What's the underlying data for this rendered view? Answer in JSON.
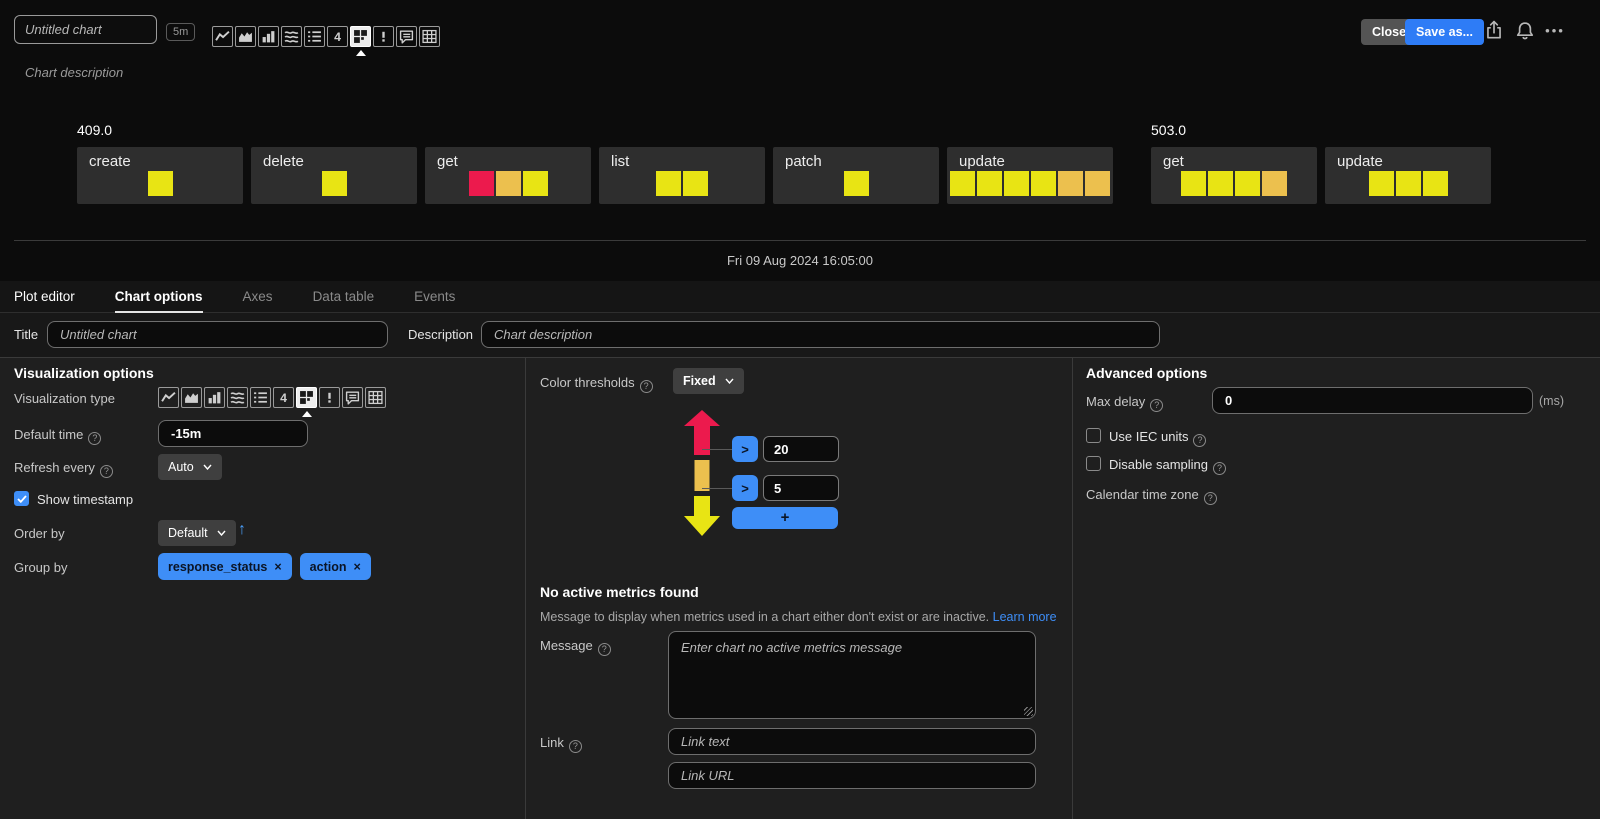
{
  "header": {
    "title_placeholder": "Untitled chart",
    "time_badge": "5m",
    "description_placeholder": "Chart description",
    "close_label": "Close",
    "save_as_label": "Save as...",
    "action_icons": [
      "share-icon",
      "bell-icon",
      "ellipsis-icon"
    ]
  },
  "viz_types": {
    "names": [
      "line-chart",
      "area-chart",
      "column-chart",
      "stream-chart",
      "list",
      "single-value",
      "heatmap",
      "event-feed",
      "text-note",
      "table"
    ],
    "selected": "heatmap",
    "single_value_glyph": "4"
  },
  "heatmap": {
    "timestamp": "Fri 09 Aug 2024 16:05:00",
    "colors": {
      "yellow": "#e8e414",
      "orange": "#ecc04e",
      "red": "#ec1a4d"
    },
    "groups": [
      {
        "label": "409.0",
        "tiles": [
          {
            "name": "create",
            "cells": [
              "yellow"
            ]
          },
          {
            "name": "delete",
            "cells": [
              "yellow"
            ]
          },
          {
            "name": "get",
            "cells": [
              "red",
              "orange",
              "yellow"
            ]
          },
          {
            "name": "list",
            "cells": [
              "yellow",
              "yellow"
            ]
          },
          {
            "name": "patch",
            "cells": [
              "yellow"
            ]
          },
          {
            "name": "update",
            "cells": [
              "yellow",
              "yellow",
              "yellow",
              "yellow",
              "orange",
              "orange"
            ]
          }
        ]
      },
      {
        "label": "503.0",
        "tiles": [
          {
            "name": "get",
            "cells": [
              "yellow",
              "yellow",
              "yellow",
              "orange"
            ]
          },
          {
            "name": "update",
            "cells": [
              "yellow",
              "yellow",
              "yellow"
            ]
          }
        ]
      }
    ]
  },
  "tabs": [
    {
      "label": "Plot editor",
      "state": "white"
    },
    {
      "label": "Chart options",
      "state": "active"
    },
    {
      "label": "Axes",
      "state": "muted"
    },
    {
      "label": "Data table",
      "state": "muted"
    },
    {
      "label": "Events",
      "state": "muted"
    }
  ],
  "title_row": {
    "title_label": "Title",
    "title_placeholder": "Untitled chart",
    "description_label": "Description",
    "description_placeholder": "Chart description"
  },
  "viz_options": {
    "heading": "Visualization options",
    "viz_type_label": "Visualization type",
    "default_time_label": "Default time",
    "default_time_value": "-15m",
    "refresh_label": "Refresh every",
    "refresh_value": "Auto",
    "show_timestamp_label": "Show timestamp",
    "show_timestamp_checked": true,
    "order_by_label": "Order by",
    "order_by_value": "Default",
    "sort_arrow": "↑",
    "group_by_label": "Group by",
    "group_by_tags": [
      "response_status",
      "action"
    ],
    "tag_remove_glyph": "×"
  },
  "thresholds": {
    "label": "Color thresholds",
    "mode": "Fixed",
    "rows": [
      {
        "op": ">",
        "value": "20"
      },
      {
        "op": ">",
        "value": "5"
      }
    ],
    "add_label": "+"
  },
  "no_active_metrics": {
    "heading": "No active metrics found",
    "description": "Message to display when metrics used in a chart either don't exist or are inactive.",
    "learn_more_label": "Learn more",
    "message_label": "Message",
    "message_placeholder": "Enter chart no active metrics message",
    "link_label": "Link",
    "link_text_placeholder": "Link text",
    "link_url_placeholder": "Link URL"
  },
  "advanced": {
    "heading": "Advanced options",
    "max_delay_label": "Max delay",
    "max_delay_value": "0",
    "max_delay_unit": "(ms)",
    "use_iec_label": "Use IEC units",
    "use_iec_checked": false,
    "disable_sampling_label": "Disable sampling",
    "disable_sampling_checked": false,
    "calendar_tz_label": "Calendar time zone"
  }
}
